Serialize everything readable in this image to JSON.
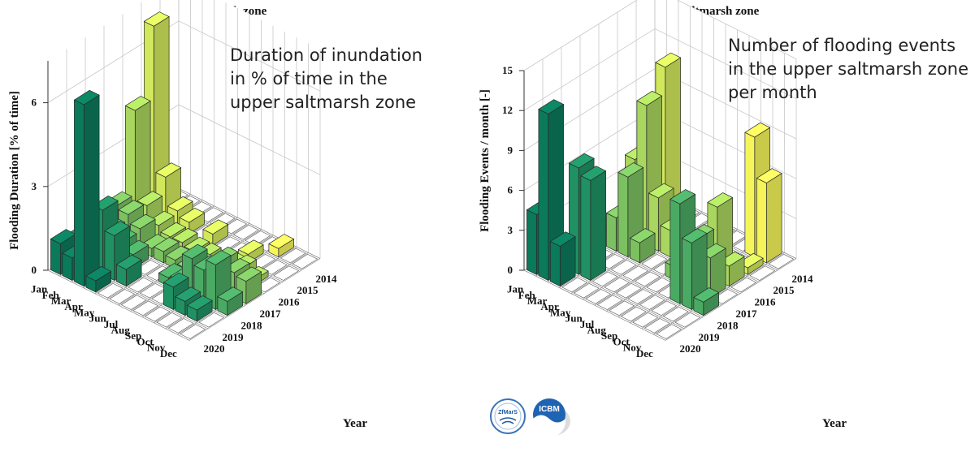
{
  "chart_data": [
    {
      "type": "bar3d",
      "title": "Upper saltmarsh zone",
      "annotation": [
        "Duration of inundation",
        "in % of time in the",
        "upper saltmarsh zone"
      ],
      "ylabel": "Flooding Duration [% of time]",
      "xlabel": "Year",
      "zlim": [
        0,
        7.5
      ],
      "zticks": [
        0,
        3,
        6
      ],
      "months": [
        "Jan",
        "Feb",
        "Mar",
        "Apr",
        "May",
        "Jun",
        "Jul",
        "Aug",
        "Sep",
        "Oct",
        "Nov",
        "Dec"
      ],
      "years": [
        "2020",
        "2019",
        "2018",
        "2017",
        "2016",
        "2015",
        "2014"
      ],
      "values": [
        [
          1.1,
          0.8,
          6.5,
          0.4,
          0.0,
          0.0,
          0.0,
          0.0,
          0.0,
          0.0,
          0.0,
          0.0
        ],
        [
          0.9,
          0.7,
          2.3,
          1.6,
          0.6,
          0.0,
          0.0,
          0.0,
          0.8,
          0.5,
          0.4,
          0.0
        ],
        [
          1.0,
          0.9,
          0.7,
          0.5,
          0.0,
          0.0,
          0.3,
          0.4,
          1.4,
          1.2,
          1.6,
          0.5
        ],
        [
          1.2,
          1.1,
          0.8,
          0.3,
          0.4,
          0.3,
          0.2,
          0.5,
          0.4,
          1.1,
          0.9,
          0.8
        ],
        [
          4.2,
          1.0,
          0.5,
          0.3,
          0.3,
          0.2,
          0.2,
          0.0,
          0.3,
          0.4,
          0.2,
          0.0
        ],
        [
          6.8,
          1.6,
          0.6,
          0.4,
          0.0,
          0.4,
          0.0,
          0.0,
          0.3,
          0.0,
          0.0,
          0.0
        ],
        [
          0.0,
          0.0,
          0.0,
          0.0,
          0.0,
          0.0,
          0.0,
          0.0,
          0.0,
          0.3,
          0.0,
          0.0
        ]
      ]
    },
    {
      "type": "bar3d",
      "title": "Upper saltmarsh zone",
      "annotation": [
        "Number of flooding events",
        "in the upper saltmarsh zone",
        "per month"
      ],
      "ylabel": "Flooding Events / month [-]",
      "xlabel": "Year",
      "zlim": [
        0,
        15
      ],
      "zticks": [
        0,
        3,
        6,
        9,
        12,
        15
      ],
      "months": [
        "Jan",
        "Feb",
        "Mar",
        "Apr",
        "May",
        "Jun",
        "Jul",
        "Aug",
        "Sep",
        "Oct",
        "Nov",
        "Dec"
      ],
      "years": [
        "2020",
        "2019",
        "2018",
        "2017",
        "2016",
        "2015",
        "2014"
      ],
      "values": [
        [
          4.5,
          12.5,
          3.0,
          0.0,
          0.0,
          0.0,
          0.0,
          0.0,
          0.0,
          0.0,
          0.0,
          0.0
        ],
        [
          0.0,
          0.0,
          8.0,
          7.5,
          0.0,
          0.0,
          0.0,
          0.0,
          0.0,
          0.0,
          0.0,
          0.0
        ],
        [
          0.0,
          0.0,
          0.0,
          0.0,
          0.0,
          0.0,
          0.0,
          0.0,
          0.0,
          7.5,
          5.0,
          1.0
        ],
        [
          0.0,
          0.0,
          2.5,
          6.0,
          1.5,
          0.0,
          0.0,
          1.0,
          2.0,
          4.0,
          3.0,
          0.0
        ],
        [
          0.0,
          0.0,
          6.0,
          10.5,
          4.0,
          2.0,
          1.0,
          0.0,
          0.0,
          5.5,
          1.5,
          0.0
        ],
        [
          0.0,
          0.0,
          0.0,
          12.5,
          1.5,
          0.0,
          0.0,
          0.0,
          0.0,
          0.0,
          0.5,
          0.0
        ],
        [
          0.0,
          0.0,
          0.0,
          0.0,
          0.0,
          0.0,
          0.0,
          0.0,
          0.0,
          9.0,
          6.0,
          0.0
        ]
      ]
    }
  ],
  "colors": {
    "year_palette": [
      "#0b7a5b",
      "#1f9163",
      "#4aaa63",
      "#7cc161",
      "#a9d65e",
      "#d2e85c",
      "#f5f55a"
    ],
    "edge": "#2a2a2a",
    "grid": "#c8c8c8"
  },
  "logos": [
    {
      "name": "ZfMarS",
      "text": "ZfMarS"
    },
    {
      "name": "ICBM",
      "text": "ICBM"
    }
  ]
}
